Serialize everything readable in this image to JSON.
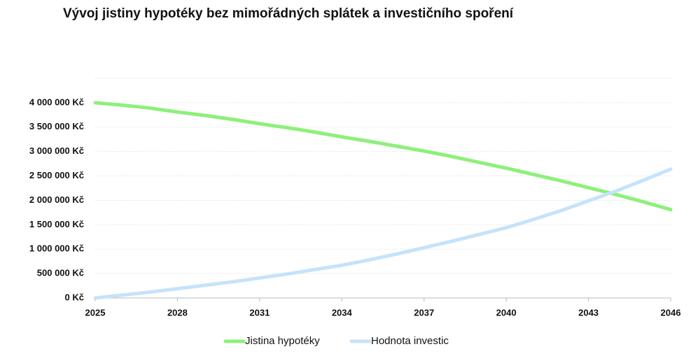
{
  "chart_data": {
    "type": "line",
    "title": "Vývoj jistiny hypotéky bez mimořádných splátek a investičního spoření",
    "x": [
      2025,
      2026,
      2027,
      2028,
      2029,
      2030,
      2031,
      2032,
      2033,
      2034,
      2035,
      2036,
      2037,
      2038,
      2039,
      2040,
      2041,
      2042,
      2043,
      2044,
      2045,
      2046
    ],
    "series": [
      {
        "name": "Jistina hypotéky",
        "color": "#8ef07a",
        "values": [
          4000000,
          3950000,
          3890000,
          3810000,
          3740000,
          3660000,
          3570000,
          3490000,
          3400000,
          3300000,
          3210000,
          3110000,
          3010000,
          2900000,
          2780000,
          2660000,
          2530000,
          2400000,
          2260000,
          2120000,
          1970000,
          1810000
        ]
      },
      {
        "name": "Hodnota investic",
        "color": "#c5e3fb",
        "values": [
          0,
          60000,
          120000,
          190000,
          260000,
          330000,
          410000,
          490000,
          580000,
          670000,
          780000,
          900000,
          1030000,
          1160000,
          1300000,
          1440000,
          1610000,
          1790000,
          1990000,
          2190000,
          2410000,
          2640000
        ]
      }
    ],
    "xlim": [
      2025,
      2046
    ],
    "xticks": [
      2025,
      2028,
      2031,
      2034,
      2037,
      2040,
      2043,
      2046
    ],
    "ylim": [
      0,
      4500000
    ],
    "yticks": [
      {
        "value": 0,
        "label": "0 Kč"
      },
      {
        "value": 500000,
        "label": "500 000 Kč"
      },
      {
        "value": 1000000,
        "label": "1 000 000 Kč"
      },
      {
        "value": 1500000,
        "label": "1 500 000 Kč"
      },
      {
        "value": 2000000,
        "label": "2 000 000 Kč"
      },
      {
        "value": 2500000,
        "label": "2 500 000 Kč"
      },
      {
        "value": 3000000,
        "label": "3 000 000 Kč"
      },
      {
        "value": 3500000,
        "label": "3 500 000 Kč"
      },
      {
        "value": 4000000,
        "label": "4 000 000 Kč"
      }
    ],
    "grid": true,
    "legend": "bottom"
  }
}
